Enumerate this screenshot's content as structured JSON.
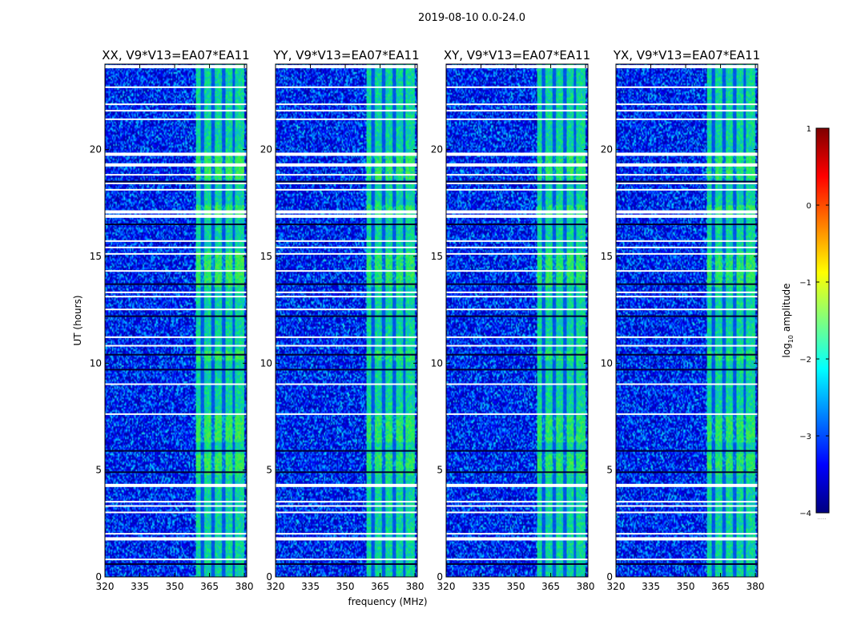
{
  "figure": {
    "suptitle": "2019-08-10 0.0-24.0",
    "xlabel": "frequency (MHz)",
    "ylabel": "UT (hours)"
  },
  "colorbar": {
    "label": "log",
    "label_sub": "10",
    "label_rest": " amplitude",
    "ticks": [
      1,
      0,
      -1,
      -2,
      -3,
      -4
    ],
    "tick_labels": [
      "1",
      "0",
      "−1",
      "−2",
      "−3",
      "−4"
    ],
    "range": [
      -4,
      1
    ],
    "colormap": "jet",
    "colormap_colors": [
      "#00007f",
      "#0000ff",
      "#007fff",
      "#00ffff",
      "#7fff7f",
      "#ffff00",
      "#ff7f00",
      "#ff0000",
      "#7f0000"
    ]
  },
  "chart_data": [
    {
      "type": "heatmap",
      "title": "XX, V9*V13=EA07*EA11",
      "xlim": [
        320,
        381
      ],
      "ylim": [
        0,
        24
      ],
      "xticks": [
        320,
        335,
        350,
        365,
        380
      ],
      "yticks": [
        0,
        5,
        10,
        15,
        20
      ],
      "bright_band_mhz": [
        359,
        380
      ],
      "white_gap_hours": [
        0.8,
        1.8,
        2.0,
        3.0,
        3.3,
        3.5,
        4.3,
        7.6,
        9.0,
        10.8,
        11.2,
        12.5,
        13.1,
        13.3,
        14.3,
        15.1,
        15.4,
        15.7,
        16.9,
        17.1,
        18.1,
        18.4,
        18.8,
        19.3,
        19.8,
        21.4,
        21.8,
        22.1,
        22.9,
        23.9
      ]
    },
    {
      "type": "heatmap",
      "title": "YY, V9*V13=EA07*EA11",
      "xlim": [
        320,
        381
      ],
      "ylim": [
        0,
        24
      ],
      "xticks": [
        320,
        335,
        350,
        365,
        380
      ],
      "yticks": [
        0,
        5,
        10,
        15,
        20
      ],
      "bright_band_mhz": [
        359,
        380
      ],
      "white_gap_hours": [
        0.8,
        1.8,
        2.0,
        3.0,
        3.3,
        3.5,
        4.3,
        7.6,
        9.0,
        10.8,
        11.2,
        12.5,
        13.1,
        13.3,
        14.3,
        15.1,
        15.4,
        15.7,
        16.9,
        17.1,
        18.1,
        18.4,
        18.8,
        19.3,
        19.8,
        21.4,
        21.8,
        22.1,
        22.9,
        23.9
      ]
    },
    {
      "type": "heatmap",
      "title": "XY, V9*V13=EA07*EA11",
      "xlim": [
        320,
        381
      ],
      "ylim": [
        0,
        24
      ],
      "xticks": [
        320,
        335,
        350,
        365,
        380
      ],
      "yticks": [
        0,
        5,
        10,
        15,
        20
      ],
      "bright_band_mhz": [
        359,
        380
      ],
      "white_gap_hours": [
        0.8,
        1.8,
        2.0,
        3.0,
        3.3,
        3.5,
        4.3,
        7.6,
        9.0,
        10.8,
        11.2,
        12.5,
        13.1,
        13.3,
        14.3,
        15.1,
        15.4,
        15.7,
        16.9,
        17.1,
        18.1,
        18.4,
        18.8,
        19.3,
        19.8,
        21.4,
        21.8,
        22.1,
        22.9,
        23.9
      ]
    },
    {
      "type": "heatmap",
      "title": "YX, V9*V13=EA07*EA11",
      "xlim": [
        320,
        381
      ],
      "ylim": [
        0,
        24
      ],
      "xticks": [
        320,
        335,
        350,
        365,
        380
      ],
      "yticks": [
        0,
        5,
        10,
        15,
        20
      ],
      "bright_band_mhz": [
        359,
        380
      ],
      "white_gap_hours": [
        0.8,
        1.8,
        2.0,
        3.0,
        3.3,
        3.5,
        4.3,
        7.6,
        9.0,
        10.8,
        11.2,
        12.5,
        13.1,
        13.3,
        14.3,
        15.1,
        15.4,
        15.7,
        16.9,
        17.1,
        18.1,
        18.4,
        18.8,
        19.3,
        19.8,
        21.4,
        21.8,
        22.1,
        22.9,
        23.9
      ]
    }
  ]
}
